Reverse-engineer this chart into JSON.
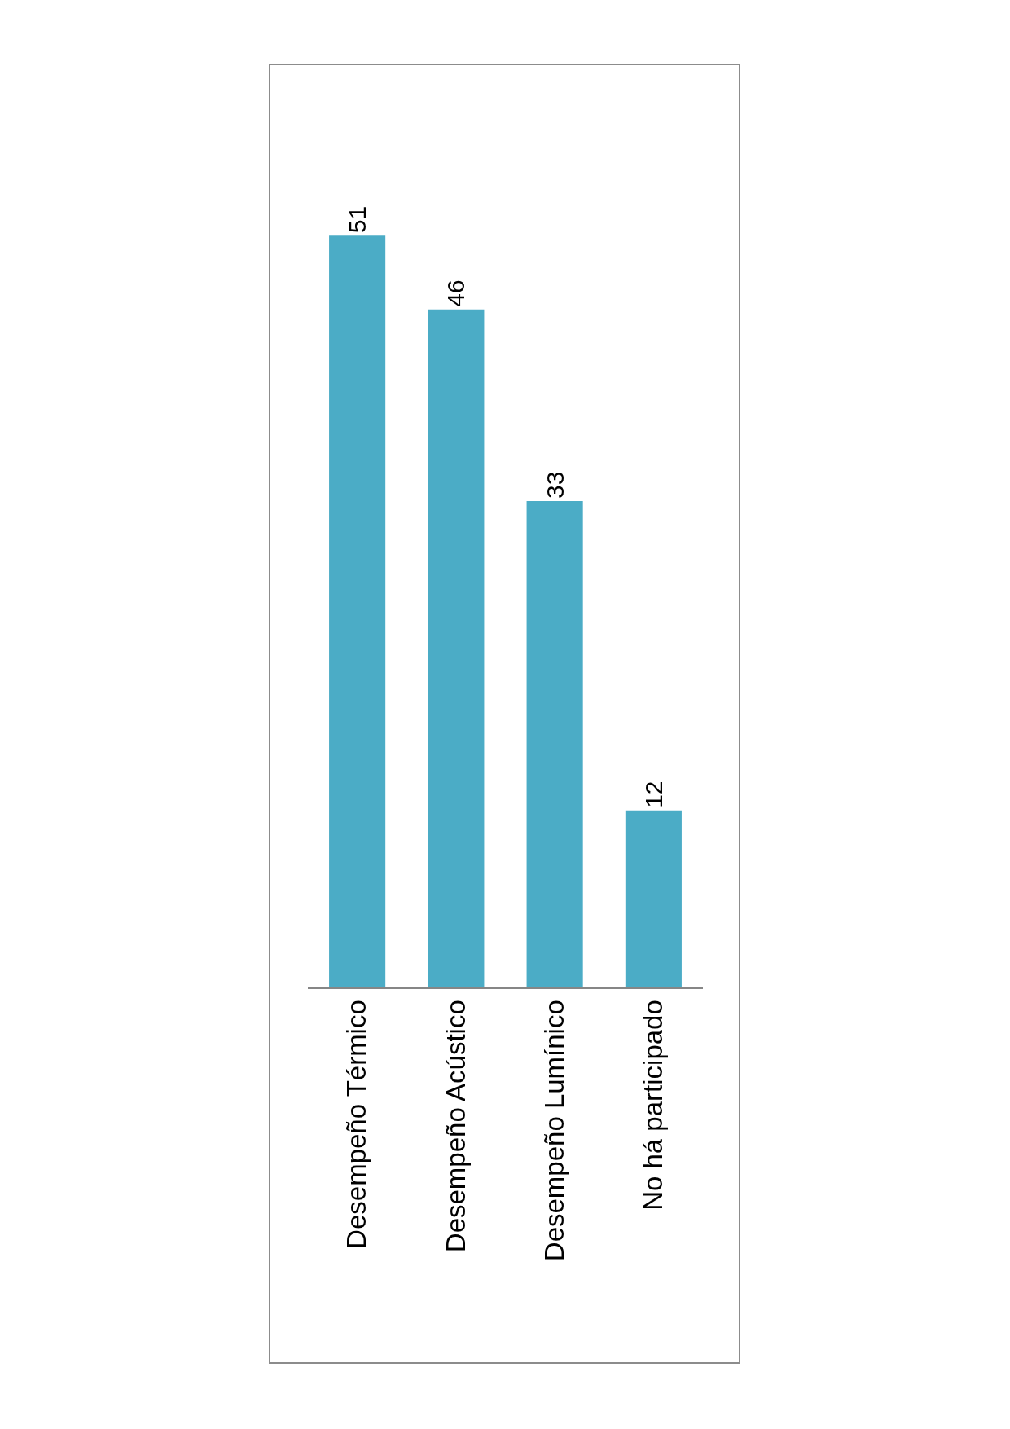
{
  "chart_data": {
    "type": "bar",
    "categories": [
      "Desempeño Térmico",
      "Desempeño Acústico",
      "Desempeño Lumínico",
      "No há participado"
    ],
    "values": [
      51,
      46,
      33,
      12
    ],
    "color": "#4bacc6",
    "data_labels": true,
    "grid": false,
    "legend": false,
    "tick_labels": "x"
  }
}
